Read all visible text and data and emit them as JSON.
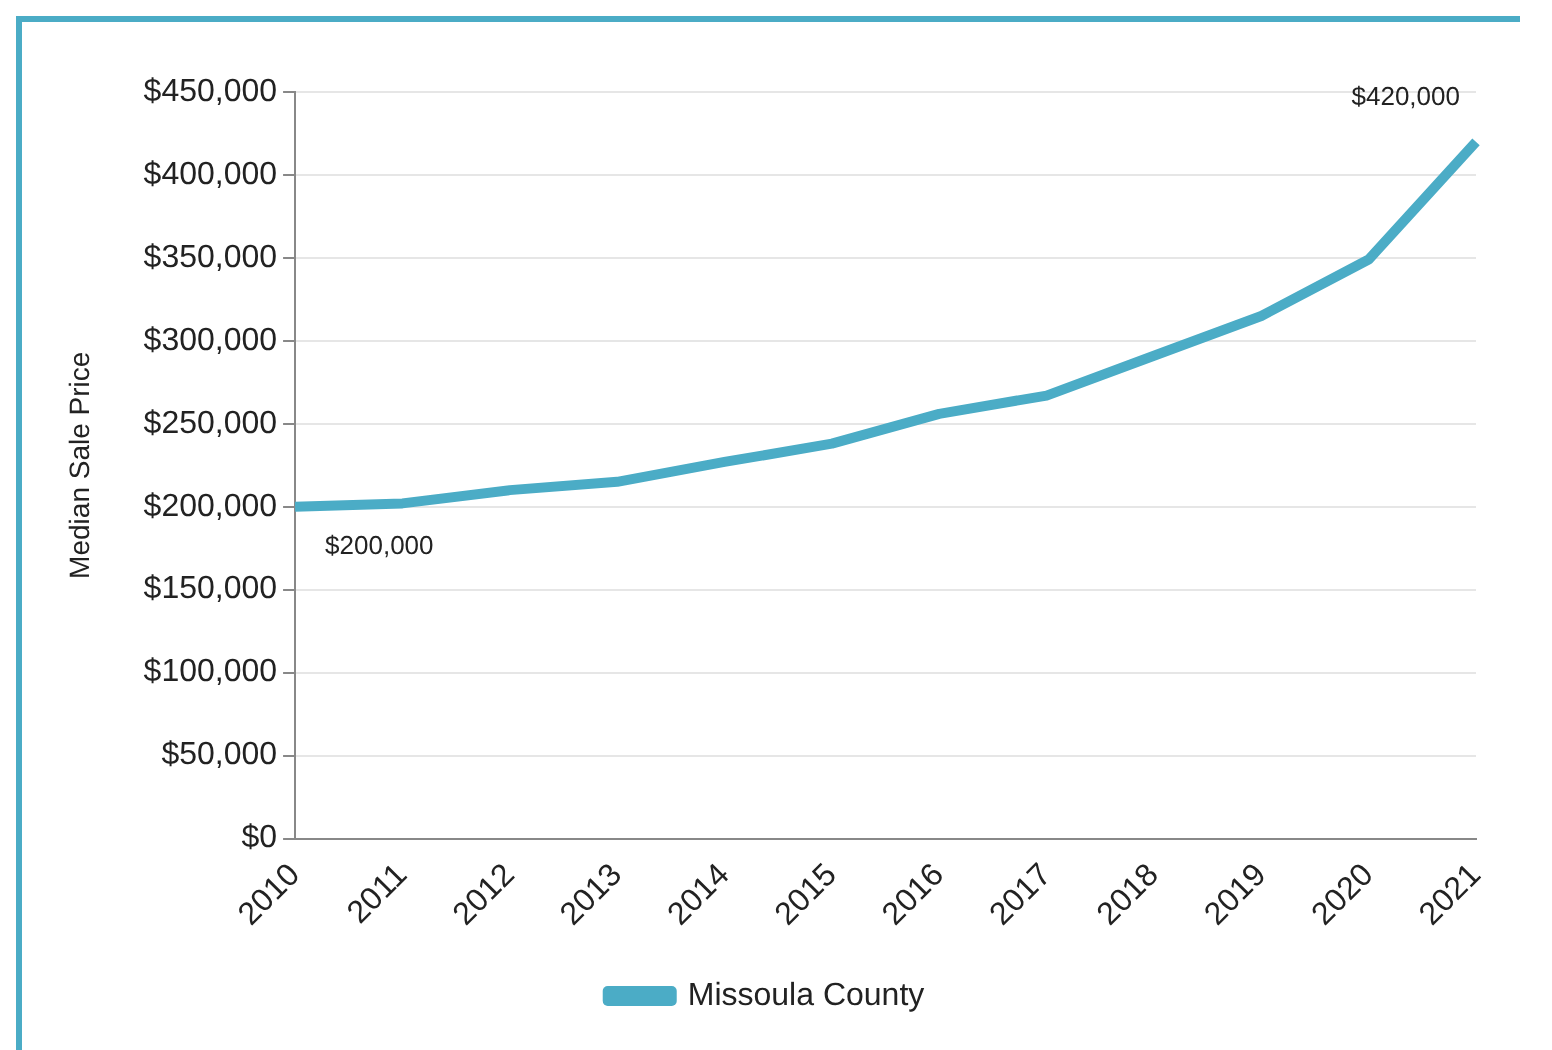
{
  "chart_data": {
    "type": "line",
    "ylabel": "Median Sale Price",
    "categories": [
      "2010",
      "2011",
      "2012",
      "2013",
      "2014",
      "2015",
      "2016",
      "2017",
      "2018",
      "2019",
      "2020",
      "2021"
    ],
    "series": [
      {
        "name": "Missoula County",
        "color": "#4bacc6",
        "values": [
          200000,
          202000,
          210000,
          215000,
          227000,
          238000,
          256000,
          267000,
          291000,
          315000,
          349000,
          420000
        ]
      }
    ],
    "ylim": [
      0,
      450000
    ],
    "yticks": [
      {
        "value": 0,
        "label": "$0"
      },
      {
        "value": 50000,
        "label": "$50,000"
      },
      {
        "value": 100000,
        "label": "$100,000"
      },
      {
        "value": 150000,
        "label": "$150,000"
      },
      {
        "value": 200000,
        "label": "$200,000"
      },
      {
        "value": 250000,
        "label": "$250,000"
      },
      {
        "value": 300000,
        "label": "$300,000"
      },
      {
        "value": 350000,
        "label": "$350,000"
      },
      {
        "value": 400000,
        "label": "$400,000"
      },
      {
        "value": 450000,
        "label": "$450,000"
      }
    ],
    "annotations": [
      {
        "text": "$200,000",
        "x": "2010",
        "y": 200000
      },
      {
        "text": "$420,000",
        "x": "2021",
        "y": 420000
      }
    ],
    "grid": "y",
    "legend": "bottom",
    "marker": "none",
    "line_style": "solid"
  }
}
